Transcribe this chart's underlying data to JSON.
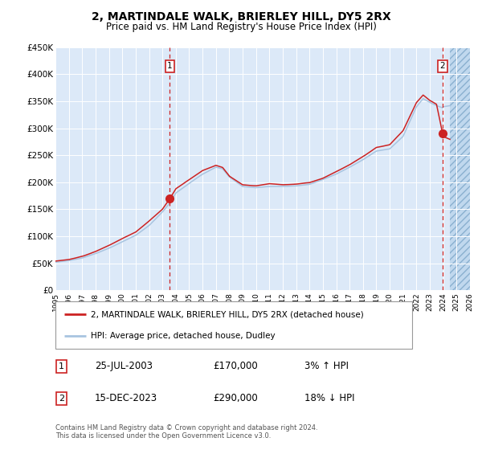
{
  "title": "2, MARTINDALE WALK, BRIERLEY HILL, DY5 2RX",
  "subtitle": "Price paid vs. HM Land Registry's House Price Index (HPI)",
  "legend_line1": "2, MARTINDALE WALK, BRIERLEY HILL, DY5 2RX (detached house)",
  "legend_line2": "HPI: Average price, detached house, Dudley",
  "footnote": "Contains HM Land Registry data © Crown copyright and database right 2024.\nThis data is licensed under the Open Government Licence v3.0.",
  "annotation1_label": "1",
  "annotation1_date": "25-JUL-2003",
  "annotation1_price": "£170,000",
  "annotation1_hpi": "3% ↑ HPI",
  "annotation2_label": "2",
  "annotation2_date": "15-DEC-2023",
  "annotation2_price": "£290,000",
  "annotation2_hpi": "18% ↓ HPI",
  "bg_color": "#dce9f8",
  "hatch_color": "#c0d8ee",
  "grid_color": "#ffffff",
  "hpi_line_color": "#a8c4e0",
  "price_line_color": "#cc2222",
  "dot_color": "#cc2222",
  "vline_color": "#cc2222",
  "ylim": [
    0,
    450000
  ],
  "yticks": [
    0,
    50000,
    100000,
    150000,
    200000,
    250000,
    300000,
    350000,
    400000,
    450000
  ],
  "ytick_labels": [
    "£0",
    "£50K",
    "£100K",
    "£150K",
    "£200K",
    "£250K",
    "£300K",
    "£350K",
    "£400K",
    "£450K"
  ],
  "xmin_year": 1995,
  "xmax_year": 2026,
  "xtick_years": [
    1995,
    1996,
    1997,
    1998,
    1999,
    2000,
    2001,
    2002,
    2003,
    2004,
    2005,
    2006,
    2007,
    2008,
    2009,
    2010,
    2011,
    2012,
    2013,
    2014,
    2015,
    2016,
    2017,
    2018,
    2019,
    2020,
    2021,
    2022,
    2023,
    2024,
    2025,
    2026
  ],
  "sale1_x": 2003.56,
  "sale1_y": 170000,
  "sale2_x": 2023.96,
  "sale2_y": 290000,
  "hatch_start": 2024.5,
  "hatch_end": 2026.5,
  "hpi_base_points_x": [
    1995,
    1996,
    1997,
    1998,
    1999,
    2000,
    2001,
    2002,
    2003,
    2003.56,
    2004,
    2005,
    2006,
    2007,
    2007.5,
    2008,
    2009,
    2010,
    2011,
    2012,
    2013,
    2014,
    2015,
    2016,
    2017,
    2018,
    2019,
    2020,
    2021,
    2022,
    2022.5,
    2023,
    2023.5,
    2023.96,
    2024,
    2024.5
  ],
  "hpi_base_points_y": [
    52000,
    55000,
    60000,
    68000,
    78000,
    90000,
    102000,
    120000,
    145000,
    162000,
    180000,
    198000,
    215000,
    228000,
    225000,
    210000,
    192000,
    190000,
    192000,
    192000,
    193000,
    196000,
    205000,
    215000,
    228000,
    242000,
    258000,
    262000,
    285000,
    340000,
    355000,
    348000,
    342000,
    338000,
    340000,
    342000
  ],
  "price_base_points_x": [
    1995,
    1996,
    1997,
    1998,
    1999,
    2000,
    2001,
    2002,
    2003,
    2003.56,
    2004,
    2005,
    2006,
    2007,
    2007.5,
    2008,
    2009,
    2010,
    2011,
    2012,
    2013,
    2014,
    2015,
    2016,
    2017,
    2018,
    2019,
    2020,
    2021,
    2022,
    2022.5,
    2023,
    2023.5,
    2023.96,
    2024,
    2024.5
  ],
  "price_base_points_y": [
    54000,
    57000,
    63000,
    72000,
    83000,
    96000,
    108000,
    128000,
    150000,
    170000,
    188000,
    205000,
    222000,
    232000,
    228000,
    212000,
    196000,
    194000,
    198000,
    196000,
    197000,
    200000,
    208000,
    220000,
    233000,
    248000,
    265000,
    270000,
    296000,
    348000,
    362000,
    352000,
    345000,
    290000,
    285000,
    280000
  ]
}
